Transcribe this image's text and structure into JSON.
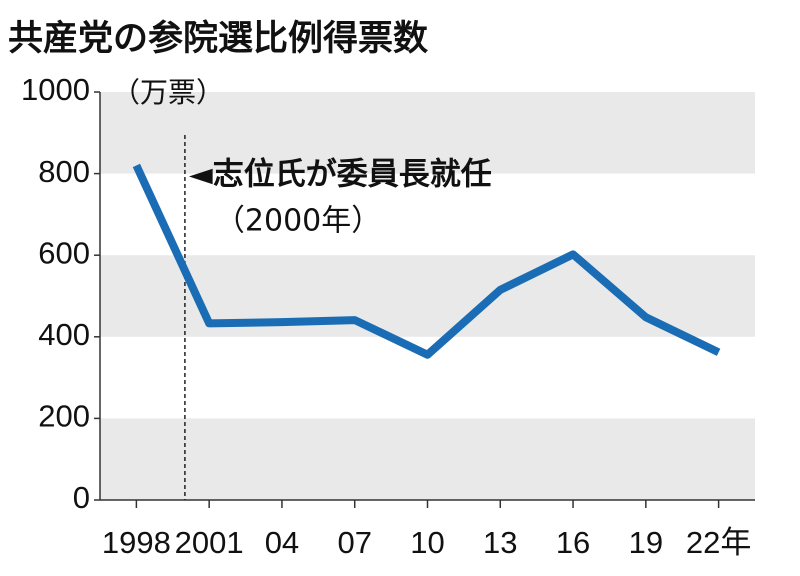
{
  "chart_data": {
    "type": "line",
    "title": "共産党の参院選比例得票数",
    "y_unit": "（万票）",
    "x": [
      1998,
      2001,
      2004,
      2007,
      2010,
      2013,
      2016,
      2019,
      2022
    ],
    "series": [
      {
        "color": "#1a6db5",
        "values": [
          820,
          433,
          436,
          441,
          356,
          515,
          602,
          448,
          362
        ]
      }
    ],
    "xlim": [
      1996.5,
      2023.5
    ],
    "xticks": [
      {
        "value": 1998,
        "label": "1998"
      },
      {
        "value": 2001,
        "label": "2001"
      },
      {
        "value": 2004,
        "label": "04"
      },
      {
        "value": 2007,
        "label": "07"
      },
      {
        "value": 2010,
        "label": "10"
      },
      {
        "value": 2013,
        "label": "13"
      },
      {
        "value": 2016,
        "label": "16"
      },
      {
        "value": 2019,
        "label": "19"
      },
      {
        "value": 2022,
        "label": "22年"
      }
    ],
    "ylim": [
      0,
      1000
    ],
    "yticks": [
      0,
      200,
      400,
      600,
      800,
      1000
    ],
    "band_color": "#e9e9e9",
    "annotation": {
      "x": 2000,
      "text": "◄志位氏が委員長就任",
      "note": "（2000年）"
    }
  }
}
